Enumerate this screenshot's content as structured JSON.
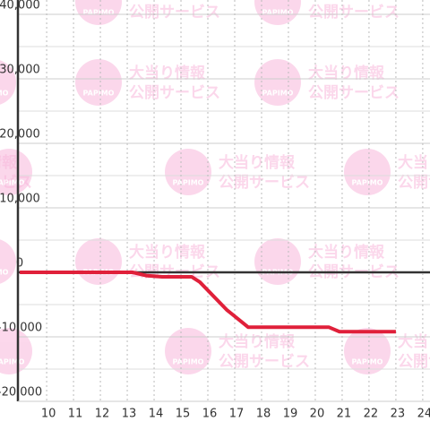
{
  "chart_data": {
    "type": "line",
    "x": [
      9,
      13.2,
      13.7,
      14.3,
      15.4,
      15.7,
      16.7,
      17.5,
      20.5,
      20.9,
      23
    ],
    "series": [
      {
        "color": "#e0203a",
        "values": [
          0,
          0,
          -500,
          -700,
          -700,
          -1500,
          -5800,
          -8500,
          -8500,
          -9200,
          -9200
        ]
      }
    ],
    "xlim": [
      8.93,
      24.27
    ],
    "xticks": [
      10,
      11,
      12,
      13,
      14,
      15,
      16,
      17,
      18,
      19,
      20,
      21,
      22,
      23,
      24
    ],
    "ylim": [
      -20000,
      40000
    ],
    "yticks": [
      {
        "value": -20000,
        "label": "-20,000"
      },
      {
        "value": -10000,
        "label": "-10,000"
      },
      0,
      {
        "value": 10000,
        "label": "10,000"
      },
      {
        "value": 20000,
        "label": "20,000"
      },
      {
        "value": 30000,
        "label": "30,000"
      },
      {
        "value": 40000,
        "label": "40,000"
      }
    ],
    "grid": true
  },
  "watermark": {
    "logo": "PAPIMO",
    "line1": "大当り情報",
    "line2": "公開サービス"
  }
}
